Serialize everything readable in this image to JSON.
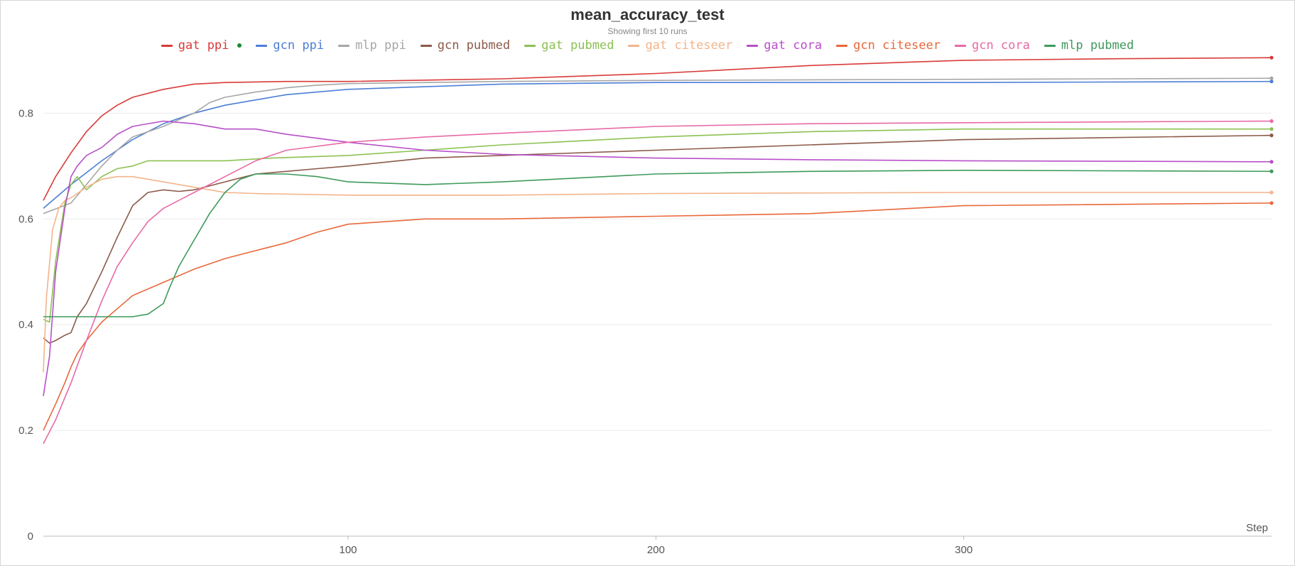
{
  "chart_data": {
    "type": "line",
    "title": "mean_accuracy_test",
    "subtitle": "Showing first 10 runs",
    "xlabel": "Step",
    "ylabel": "",
    "xlim": [
      1,
      400
    ],
    "ylim": [
      0,
      0.92
    ],
    "x_ticks": [
      {
        "value": 100,
        "label": "100"
      },
      {
        "value": 200,
        "label": "200"
      },
      {
        "value": 300,
        "label": "300"
      }
    ],
    "y_ticks": [
      {
        "value": 0,
        "label": "0"
      },
      {
        "value": 0.2,
        "label": "0.2"
      },
      {
        "value": 0.4,
        "label": "0.4"
      },
      {
        "value": 0.6,
        "label": "0.6"
      },
      {
        "value": 0.8,
        "label": "0.8"
      }
    ],
    "grid": "horizontal",
    "legend_position": "top",
    "series": [
      {
        "name": "gat ppi",
        "color": "#d93a3a",
        "x": [
          1,
          5,
          10,
          15,
          20,
          25,
          30,
          40,
          50,
          60,
          80,
          100,
          150,
          200,
          250,
          300,
          350,
          400
        ],
        "y": [
          0.635,
          0.68,
          0.725,
          0.765,
          0.795,
          0.815,
          0.83,
          0.845,
          0.855,
          0.858,
          0.86,
          0.86,
          0.865,
          0.875,
          0.89,
          0.9,
          0.903,
          0.905
        ]
      },
      {
        "name": "gcn ppi",
        "color": "#4c7ed6",
        "x": [
          1,
          10,
          20,
          30,
          40,
          50,
          60,
          70,
          80,
          100,
          125,
          150,
          200,
          300,
          400
        ],
        "y": [
          0.62,
          0.665,
          0.71,
          0.75,
          0.78,
          0.8,
          0.815,
          0.825,
          0.835,
          0.845,
          0.85,
          0.855,
          0.858,
          0.858,
          0.86
        ]
      },
      {
        "name": "mlp ppi",
        "color": "#a6a6a6",
        "x": [
          1,
          10,
          20,
          25,
          30,
          40,
          50,
          55,
          60,
          70,
          80,
          90,
          100,
          150,
          200,
          300,
          400
        ],
        "y": [
          0.61,
          0.63,
          0.7,
          0.73,
          0.755,
          0.775,
          0.8,
          0.82,
          0.83,
          0.84,
          0.848,
          0.853,
          0.856,
          0.86,
          0.862,
          0.864,
          0.866
        ]
      },
      {
        "name": "gcn pubmed",
        "color": "#8b5a4a",
        "x": [
          1,
          3,
          5,
          8,
          10,
          12,
          15,
          20,
          25,
          30,
          35,
          40,
          45,
          50,
          60,
          70,
          80,
          90,
          100,
          125,
          150,
          200,
          250,
          300,
          400
        ],
        "y": [
          0.375,
          0.365,
          0.37,
          0.38,
          0.385,
          0.415,
          0.44,
          0.5,
          0.565,
          0.625,
          0.65,
          0.655,
          0.652,
          0.655,
          0.67,
          0.685,
          0.69,
          0.695,
          0.7,
          0.715,
          0.72,
          0.73,
          0.74,
          0.75,
          0.758
        ]
      },
      {
        "name": "gat pubmed",
        "color": "#8cc152",
        "x": [
          1,
          3,
          5,
          8,
          10,
          12,
          15,
          20,
          25,
          30,
          35,
          40,
          50,
          60,
          75,
          100,
          125,
          150,
          200,
          250,
          300,
          400
        ],
        "y": [
          0.41,
          0.405,
          0.52,
          0.63,
          0.665,
          0.68,
          0.655,
          0.68,
          0.695,
          0.7,
          0.71,
          0.71,
          0.71,
          0.71,
          0.715,
          0.72,
          0.73,
          0.74,
          0.755,
          0.765,
          0.77,
          0.77
        ]
      },
      {
        "name": "gat citeseer",
        "color": "#f2b48a",
        "x": [
          1,
          2,
          4,
          6,
          8,
          10,
          15,
          20,
          25,
          30,
          40,
          50,
          60,
          70,
          100,
          150,
          200,
          300,
          400
        ],
        "y": [
          0.31,
          0.45,
          0.58,
          0.62,
          0.635,
          0.64,
          0.66,
          0.675,
          0.68,
          0.68,
          0.67,
          0.66,
          0.65,
          0.648,
          0.645,
          0.645,
          0.648,
          0.65,
          0.65
        ]
      },
      {
        "name": "gat cora",
        "color": "#b84fc9",
        "x": [
          1,
          3,
          5,
          8,
          10,
          12,
          15,
          20,
          25,
          30,
          40,
          50,
          60,
          70,
          80,
          100,
          125,
          150,
          200,
          250,
          300,
          400
        ],
        "y": [
          0.265,
          0.34,
          0.5,
          0.62,
          0.68,
          0.7,
          0.72,
          0.735,
          0.76,
          0.775,
          0.785,
          0.78,
          0.77,
          0.77,
          0.76,
          0.745,
          0.73,
          0.722,
          0.715,
          0.712,
          0.71,
          0.708
        ]
      },
      {
        "name": "gcn citeseer",
        "color": "#e8683a",
        "x": [
          1,
          5,
          8,
          10,
          12,
          15,
          20,
          25,
          30,
          40,
          50,
          60,
          70,
          80,
          90,
          100,
          125,
          150,
          200,
          250,
          300,
          400
        ],
        "y": [
          0.2,
          0.25,
          0.29,
          0.32,
          0.345,
          0.37,
          0.405,
          0.43,
          0.455,
          0.48,
          0.505,
          0.525,
          0.54,
          0.555,
          0.575,
          0.59,
          0.6,
          0.6,
          0.605,
          0.61,
          0.625,
          0.63
        ]
      },
      {
        "name": "gcn cora",
        "color": "#e76aa6",
        "x": [
          1,
          5,
          10,
          15,
          20,
          25,
          30,
          35,
          40,
          50,
          60,
          70,
          80,
          100,
          125,
          150,
          200,
          250,
          300,
          400
        ],
        "y": [
          0.175,
          0.22,
          0.29,
          0.37,
          0.445,
          0.51,
          0.555,
          0.595,
          0.62,
          0.65,
          0.68,
          0.71,
          0.73,
          0.745,
          0.755,
          0.762,
          0.775,
          0.78,
          0.782,
          0.785
        ]
      },
      {
        "name": "mlp pubmed",
        "color": "#3e9a5c",
        "x": [
          1,
          10,
          20,
          30,
          35,
          40,
          42,
          45,
          50,
          55,
          60,
          65,
          70,
          80,
          90,
          100,
          125,
          150,
          200,
          250,
          300,
          400
        ],
        "y": [
          0.415,
          0.415,
          0.415,
          0.415,
          0.42,
          0.44,
          0.47,
          0.51,
          0.56,
          0.61,
          0.65,
          0.675,
          0.685,
          0.685,
          0.68,
          0.67,
          0.665,
          0.67,
          0.685,
          0.69,
          0.692,
          0.69
        ]
      }
    ]
  }
}
